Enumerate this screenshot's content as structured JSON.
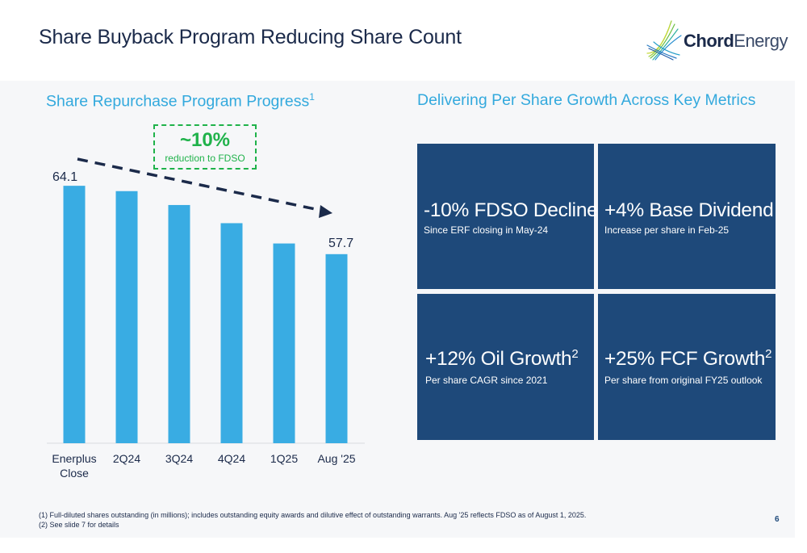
{
  "header": {
    "title": "Share Buyback Program Reducing Share Count",
    "logo_bold": "Chord",
    "logo_light": "Energy"
  },
  "left": {
    "title": "Share Repurchase Program Progress",
    "title_sup": "1",
    "callout_big": "~10%",
    "callout_small": "reduction to FDSO"
  },
  "chart_data": {
    "type": "bar",
    "categories": [
      "Enerplus Close",
      "2Q24",
      "3Q24",
      "4Q24",
      "1Q25",
      "Aug '25"
    ],
    "values": [
      64.1,
      63.6,
      62.3,
      60.6,
      58.7,
      57.7
    ],
    "data_labels": [
      "64.1",
      "",
      "",
      "",
      "",
      "57.7"
    ],
    "ylim": [
      40,
      66
    ],
    "bar_color": "#39ace3",
    "trend_color": "#1b2a4a",
    "grid": false,
    "title": "",
    "xlabel": "",
    "ylabel": ""
  },
  "right": {
    "title": "Delivering Per Share Growth Across Key Metrics",
    "tiles": [
      {
        "head": "-10% FDSO Decline",
        "sup": "",
        "sub": "Since ERF closing in May-24"
      },
      {
        "head": "+4% Base Dividend",
        "sup": "",
        "sub": "Increase per share in Feb-25"
      },
      {
        "head": "+12% Oil Growth",
        "sup": "2",
        "sub": "Per share CAGR since 2021"
      },
      {
        "head": "+25% FCF Growth",
        "sup": "2",
        "sub": "Per share from original FY25 outlook"
      }
    ]
  },
  "footer": {
    "note1": "(1) Full-diluted shares outstanding (in millions); includes outstanding equity awards and dilutive effect of outstanding warrants. Aug '25 reflects FDSO as of August 1, 2025.",
    "note2": "(2) See slide 7 for details",
    "page": "6"
  },
  "colors": {
    "navy": "#1b2a4a",
    "accent_blue": "#33a9dd",
    "tile_blue": "#1e497a",
    "green": "#1fb24a"
  }
}
